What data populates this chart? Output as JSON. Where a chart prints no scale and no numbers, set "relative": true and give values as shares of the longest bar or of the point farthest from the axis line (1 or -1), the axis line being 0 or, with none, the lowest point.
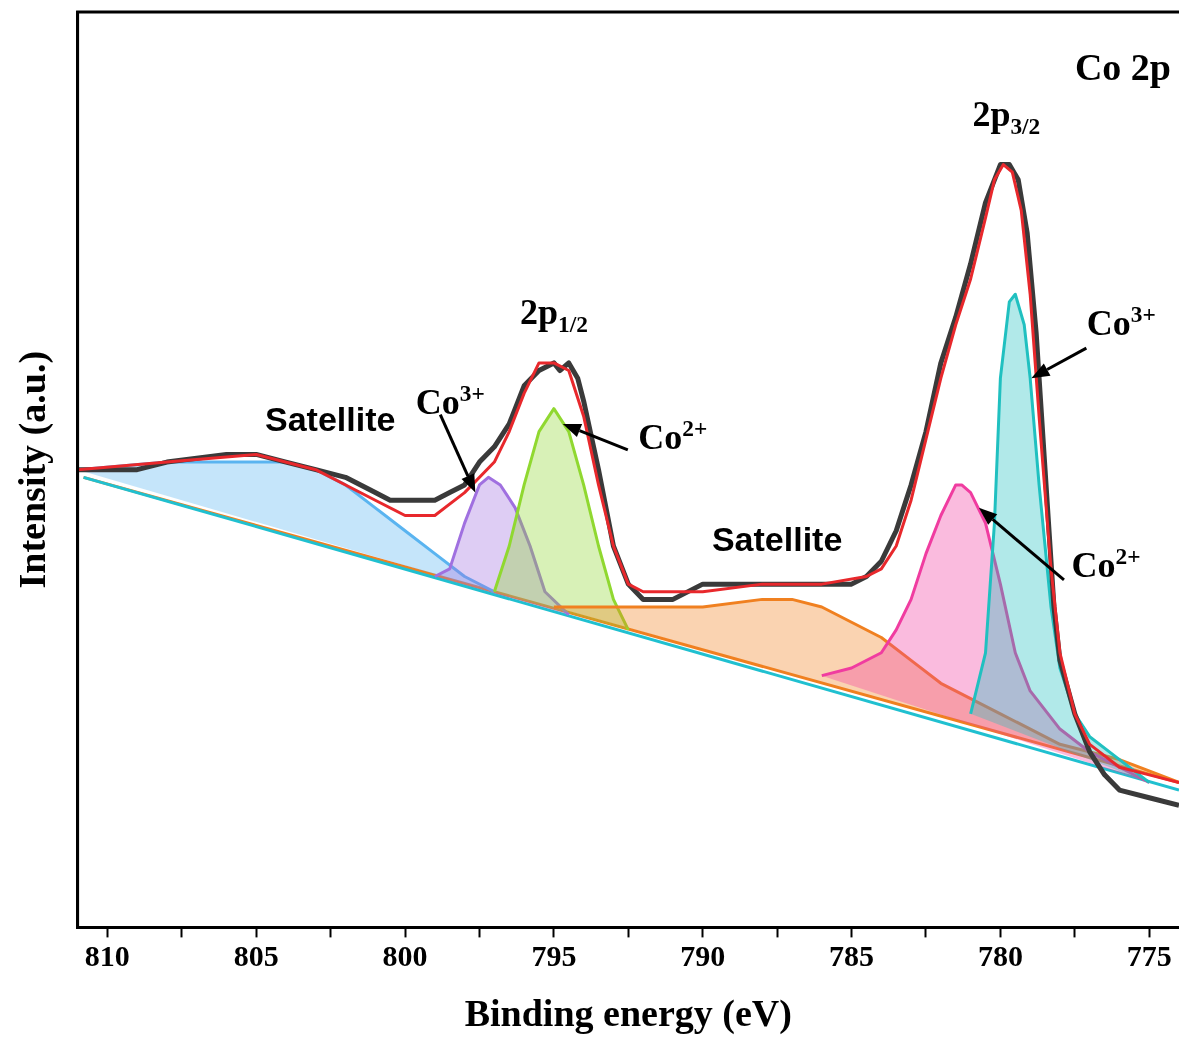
{
  "chart_data": {
    "type": "line",
    "relative": true,
    "xlabel": "Binding energy (eV)",
    "ylabel": "Intensity (a.u.)",
    "xlim": [
      811,
      774
    ],
    "xticks": [
      810,
      {
        "value": 807.5,
        "label": null
      },
      805,
      {
        "value": 802.5,
        "label": null
      },
      800,
      {
        "value": 797.5,
        "label": null
      },
      795,
      {
        "value": 792.5,
        "label": null
      },
      790,
      {
        "value": 787.5,
        "label": null
      },
      785,
      {
        "value": 782.5,
        "label": null
      },
      780,
      {
        "value": 777.5,
        "label": null
      },
      775
    ],
    "grid": false,
    "legend": false,
    "marker": "none",
    "line_style": "solid",
    "series": [
      {
        "color": "#f08020",
        "x": [
          810.8,
          774
        ],
        "values": [
          0.59,
          0.19
        ]
      },
      {
        "color": "#20c0d0",
        "x": [
          810.8,
          774
        ],
        "values": [
          0.59,
          0.18
        ]
      },
      {
        "type": "area",
        "color": "#5ab4f0",
        "x": [
          811,
          808,
          806,
          805,
          804,
          803,
          802,
          801,
          800,
          799,
          798,
          797
        ],
        "values": [
          0.6,
          0.61,
          0.61,
          0.61,
          0.61,
          0.6,
          0.58,
          0.55,
          0.52,
          0.49,
          0.46,
          0.44
        ]
      },
      {
        "type": "area",
        "color": "#a070e0",
        "x": [
          799,
          798.5,
          798,
          797.5,
          797.2,
          796.8,
          796.3,
          795.8,
          795.3,
          794.5
        ],
        "values": [
          0.46,
          0.47,
          0.53,
          0.58,
          0.59,
          0.58,
          0.55,
          0.5,
          0.44,
          0.41
        ]
      },
      {
        "type": "area",
        "color": "#90d830",
        "x": [
          797,
          796.5,
          796,
          795.5,
          795,
          794.5,
          794,
          793.5,
          793,
          792.5
        ],
        "values": [
          0.44,
          0.5,
          0.58,
          0.65,
          0.68,
          0.65,
          0.58,
          0.5,
          0.43,
          0.39
        ]
      },
      {
        "type": "area",
        "color": "#f08020",
        "x": [
          795,
          792,
          790,
          788,
          787,
          786,
          785,
          784,
          783,
          782,
          781,
          780,
          778,
          776,
          774
        ],
        "values": [
          0.42,
          0.42,
          0.42,
          0.43,
          0.43,
          0.42,
          0.4,
          0.38,
          0.35,
          0.32,
          0.3,
          0.28,
          0.24,
          0.22,
          0.19
        ]
      },
      {
        "type": "area",
        "color": "#f03ca0",
        "x": [
          786,
          785,
          784,
          783.5,
          783,
          782.5,
          782,
          781.5,
          781.3,
          781,
          780.5,
          780,
          779.5,
          779,
          778,
          777,
          776,
          775
        ],
        "values": [
          0.33,
          0.34,
          0.36,
          0.39,
          0.43,
          0.49,
          0.54,
          0.58,
          0.58,
          0.57,
          0.53,
          0.45,
          0.36,
          0.31,
          0.26,
          0.23,
          0.21,
          0.19
        ]
      },
      {
        "type": "area",
        "color": "#20c0c0",
        "x": [
          781,
          780.5,
          780.2,
          780,
          779.7,
          779.5,
          779.2,
          779,
          778.7,
          778.3,
          778,
          777.5,
          777,
          776,
          775
        ],
        "values": [
          0.28,
          0.36,
          0.53,
          0.72,
          0.82,
          0.83,
          0.79,
          0.72,
          0.58,
          0.42,
          0.34,
          0.28,
          0.25,
          0.22,
          0.19
        ]
      },
      {
        "color": "#3a3a3a",
        "x": [
          811,
          810,
          809,
          808,
          806,
          805,
          804,
          803,
          802,
          801,
          800.5,
          800,
          799.5,
          799,
          798.5,
          798,
          797.5,
          797,
          796.5,
          796,
          795.5,
          795,
          794.8,
          794.5,
          794.2,
          794,
          793.5,
          793,
          792.5,
          792,
          791.5,
          791,
          790,
          789,
          788,
          787,
          786,
          785,
          784.5,
          784,
          783.5,
          783,
          782.5,
          782,
          781.5,
          781,
          780.5,
          780.2,
          780,
          779.7,
          779.4,
          779.1,
          778.8,
          778.5,
          778.2,
          778,
          777.5,
          777,
          776.5,
          776,
          775,
          774
        ],
        "values": [
          0.6,
          0.6,
          0.6,
          0.61,
          0.62,
          0.62,
          0.61,
          0.6,
          0.59,
          0.57,
          0.56,
          0.56,
          0.56,
          0.56,
          0.57,
          0.58,
          0.61,
          0.63,
          0.66,
          0.71,
          0.73,
          0.74,
          0.73,
          0.74,
          0.72,
          0.69,
          0.6,
          0.5,
          0.45,
          0.43,
          0.43,
          0.43,
          0.45,
          0.45,
          0.45,
          0.45,
          0.45,
          0.45,
          0.46,
          0.48,
          0.52,
          0.58,
          0.65,
          0.74,
          0.8,
          0.87,
          0.95,
          0.98,
          1.0,
          1.0,
          0.98,
          0.91,
          0.78,
          0.6,
          0.42,
          0.35,
          0.28,
          0.23,
          0.2,
          0.18,
          0.17,
          0.16
        ]
      },
      {
        "color": "#e8282c",
        "x": [
          811,
          808,
          805,
          803,
          801,
          800,
          799.5,
          799,
          798,
          797,
          796.5,
          796,
          795.5,
          795,
          794.5,
          794,
          793.5,
          793,
          792.5,
          792,
          791,
          790,
          788,
          786,
          784.5,
          784,
          783.5,
          783,
          782.5,
          782,
          781.5,
          781,
          780.5,
          780.2,
          779.9,
          779.6,
          779.3,
          779,
          778.7,
          778.3,
          778,
          777.5,
          777,
          776,
          775,
          774
        ],
        "values": [
          0.6,
          0.61,
          0.62,
          0.6,
          0.56,
          0.54,
          0.54,
          0.54,
          0.57,
          0.61,
          0.65,
          0.7,
          0.74,
          0.74,
          0.73,
          0.67,
          0.58,
          0.5,
          0.45,
          0.44,
          0.44,
          0.44,
          0.45,
          0.45,
          0.46,
          0.47,
          0.5,
          0.56,
          0.64,
          0.72,
          0.79,
          0.85,
          0.93,
          0.98,
          1.0,
          0.99,
          0.94,
          0.83,
          0.67,
          0.47,
          0.36,
          0.28,
          0.24,
          0.21,
          0.2,
          0.19
        ]
      }
    ],
    "annotations": [
      "Co 2p",
      {
        "text": "2p$_{3/2}$",
        "x": 779.8,
        "y": 1.0
      },
      {
        "text": "2p$_{1/2}$",
        "x": 795,
        "y": 0.74
      },
      {
        "text": "Satellite",
        "x": 805,
        "y": 0.62
      },
      {
        "text": "Co$^{3+}$",
        "x": 797.64,
        "y": 0.57
      },
      {
        "text": "Co$^{2+}$",
        "x": 794.7,
        "y": 0.66
      },
      {
        "text": "Satellite",
        "x": 787.5,
        "y": 0.43
      },
      {
        "text": "Co$^{3+}$",
        "x": 778.96,
        "y": 0.72
      },
      {
        "text": "Co$^{2+}$",
        "x": 780.72,
        "y": 0.55
      }
    ]
  }
}
